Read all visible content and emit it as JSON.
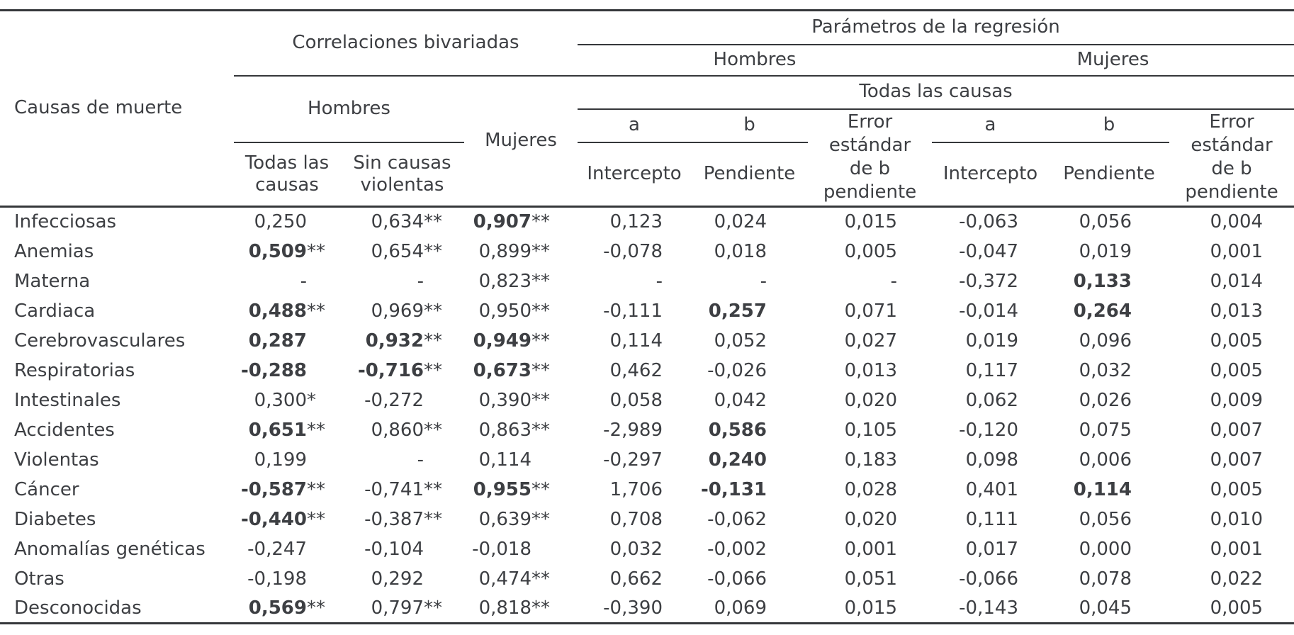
{
  "table": {
    "row_header_label": "Causas de muerte",
    "header": {
      "correlaciones": {
        "title": "Correlaciones bivariadas",
        "hombres": "Hombres",
        "mujeres": "Mujeres",
        "todas": "Todas las\ncausas",
        "sin": "Sin causas\nviolentas"
      },
      "regresion": {
        "title": "Parámetros de la regresión",
        "hombres": "Hombres",
        "mujeres": "Mujeres",
        "todas": "Todas las causas",
        "a": "a",
        "b": "b",
        "intercepto": "Intercepto",
        "pendiente": "Pendiente",
        "error": "Error\nestándar\nde b\npendiente"
      }
    },
    "column_keys": [
      "corr-hombres-todas",
      "corr-hombres-sin-violentas",
      "corr-mujeres",
      "reg-hombres-intercepto",
      "reg-hombres-pendiente",
      "reg-hombres-error",
      "reg-mujeres-intercepto",
      "reg-mujeres-pendiente",
      "reg-mujeres-error"
    ],
    "cell_format": [
      "value",
      "significance",
      "bold"
    ],
    "rows": [
      {
        "label": "Infecciosas",
        "cells": [
          [
            "0,250",
            "",
            0
          ],
          [
            "0,634",
            "**",
            0
          ],
          [
            "0,907",
            "**",
            1
          ],
          [
            "0,123",
            "",
            0
          ],
          [
            "0,024",
            "",
            0
          ],
          [
            "0,015",
            "",
            0
          ],
          [
            "-0,063",
            "",
            0
          ],
          [
            "0,056",
            "",
            0
          ],
          [
            "0,004",
            "",
            0
          ]
        ]
      },
      {
        "label": "Anemias",
        "cells": [
          [
            "0,509",
            "**",
            1
          ],
          [
            "0,654",
            "**",
            0
          ],
          [
            "0,899",
            "**",
            0
          ],
          [
            "-0,078",
            "",
            0
          ],
          [
            "0,018",
            "",
            0
          ],
          [
            "0,005",
            "",
            0
          ],
          [
            "-0,047",
            "",
            0
          ],
          [
            "0,019",
            "",
            0
          ],
          [
            "0,001",
            "",
            0
          ]
        ]
      },
      {
        "label": "Materna",
        "cells": [
          [
            "-",
            "",
            0
          ],
          [
            "-",
            "",
            0
          ],
          [
            "0,823",
            "**",
            0
          ],
          [
            "-",
            "",
            0
          ],
          [
            "-",
            "",
            0
          ],
          [
            "-",
            "",
            0
          ],
          [
            "-0,372",
            "",
            0
          ],
          [
            "0,133",
            "",
            1
          ],
          [
            "0,014",
            "",
            0
          ]
        ]
      },
      {
        "label": "Cardiaca",
        "cells": [
          [
            "0,488",
            "**",
            1
          ],
          [
            "0,969",
            "**",
            0
          ],
          [
            "0,950",
            "**",
            0
          ],
          [
            "-0,111",
            "",
            0
          ],
          [
            "0,257",
            "",
            1
          ],
          [
            "0,071",
            "",
            0
          ],
          [
            "-0,014",
            "",
            0
          ],
          [
            "0,264",
            "",
            1
          ],
          [
            "0,013",
            "",
            0
          ]
        ]
      },
      {
        "label": "Cerebrovasculares",
        "cells": [
          [
            "0,287",
            "",
            1
          ],
          [
            "0,932",
            "**",
            1
          ],
          [
            "0,949",
            "**",
            1
          ],
          [
            "0,114",
            "",
            0
          ],
          [
            "0,052",
            "",
            0
          ],
          [
            "0,027",
            "",
            0
          ],
          [
            "0,019",
            "",
            0
          ],
          [
            "0,096",
            "",
            0
          ],
          [
            "0,005",
            "",
            0
          ]
        ]
      },
      {
        "label": "Respiratorias",
        "cells": [
          [
            "-0,288",
            "",
            1
          ],
          [
            "-0,716",
            "**",
            1
          ],
          [
            "0,673",
            "**",
            1
          ],
          [
            "0,462",
            "",
            0
          ],
          [
            "-0,026",
            "",
            0
          ],
          [
            "0,013",
            "",
            0
          ],
          [
            "0,117",
            "",
            0
          ],
          [
            "0,032",
            "",
            0
          ],
          [
            "0,005",
            "",
            0
          ]
        ]
      },
      {
        "label": "Intestinales",
        "cells": [
          [
            "0,300",
            "*",
            0
          ],
          [
            "-0,272",
            "",
            0
          ],
          [
            "0,390",
            "**",
            0
          ],
          [
            "0,058",
            "",
            0
          ],
          [
            "0,042",
            "",
            0
          ],
          [
            "0,020",
            "",
            0
          ],
          [
            "0,062",
            "",
            0
          ],
          [
            "0,026",
            "",
            0
          ],
          [
            "0,009",
            "",
            0
          ]
        ]
      },
      {
        "label": "Accidentes",
        "cells": [
          [
            "0,651",
            "**",
            1
          ],
          [
            "0,860",
            "**",
            0
          ],
          [
            "0,863",
            "**",
            0
          ],
          [
            "-2,989",
            "",
            0
          ],
          [
            "0,586",
            "",
            1
          ],
          [
            "0,105",
            "",
            0
          ],
          [
            "-0,120",
            "",
            0
          ],
          [
            "0,075",
            "",
            0
          ],
          [
            "0,007",
            "",
            0
          ]
        ]
      },
      {
        "label": "Violentas",
        "cells": [
          [
            "0,199",
            "",
            0
          ],
          [
            "-",
            "",
            0
          ],
          [
            "0,114",
            "",
            0
          ],
          [
            "-0,297",
            "",
            0
          ],
          [
            "0,240",
            "",
            1
          ],
          [
            "0,183",
            "",
            0
          ],
          [
            "0,098",
            "",
            0
          ],
          [
            "0,006",
            "",
            0
          ],
          [
            "0,007",
            "",
            0
          ]
        ]
      },
      {
        "label": "Cáncer",
        "cells": [
          [
            "-0,587",
            "**",
            1
          ],
          [
            "-0,741",
            "**",
            0
          ],
          [
            "0,955",
            "**",
            1
          ],
          [
            "1,706",
            "",
            0
          ],
          [
            "-0,131",
            "",
            1
          ],
          [
            "0,028",
            "",
            0
          ],
          [
            "0,401",
            "",
            0
          ],
          [
            "0,114",
            "",
            1
          ],
          [
            "0,005",
            "",
            0
          ]
        ]
      },
      {
        "label": "Diabetes",
        "cells": [
          [
            "-0,440",
            "**",
            1
          ],
          [
            "-0,387",
            "**",
            0
          ],
          [
            "0,639",
            "**",
            0
          ],
          [
            "0,708",
            "",
            0
          ],
          [
            "-0,062",
            "",
            0
          ],
          [
            "0,020",
            "",
            0
          ],
          [
            "0,111",
            "",
            0
          ],
          [
            "0,056",
            "",
            0
          ],
          [
            "0,010",
            "",
            0
          ]
        ]
      },
      {
        "label": "Anomalías genéticas",
        "cells": [
          [
            "-0,247",
            "",
            0
          ],
          [
            "-0,104",
            "",
            0
          ],
          [
            "-0,018",
            "",
            0
          ],
          [
            "0,032",
            "",
            0
          ],
          [
            "-0,002",
            "",
            0
          ],
          [
            "0,001",
            "",
            0
          ],
          [
            "0,017",
            "",
            0
          ],
          [
            "0,000",
            "",
            0
          ],
          [
            "0,001",
            "",
            0
          ]
        ]
      },
      {
        "label": "Otras",
        "cells": [
          [
            "-0,198",
            "",
            0
          ],
          [
            "0,292",
            "",
            0
          ],
          [
            "0,474",
            "**",
            0
          ],
          [
            "0,662",
            "",
            0
          ],
          [
            "-0,066",
            "",
            0
          ],
          [
            "0,051",
            "",
            0
          ],
          [
            "-0,066",
            "",
            0
          ],
          [
            "0,078",
            "",
            0
          ],
          [
            "0,022",
            "",
            0
          ]
        ]
      },
      {
        "label": "Desconocidas",
        "cells": [
          [
            "0,569",
            "**",
            1
          ],
          [
            "0,797",
            "**",
            0
          ],
          [
            "0,818",
            "**",
            0
          ],
          [
            "-0,390",
            "",
            0
          ],
          [
            "0,069",
            "",
            0
          ],
          [
            "0,015",
            "",
            0
          ],
          [
            "-0,143",
            "",
            0
          ],
          [
            "0,045",
            "",
            0
          ],
          [
            "0,005",
            "",
            0
          ]
        ]
      }
    ]
  }
}
